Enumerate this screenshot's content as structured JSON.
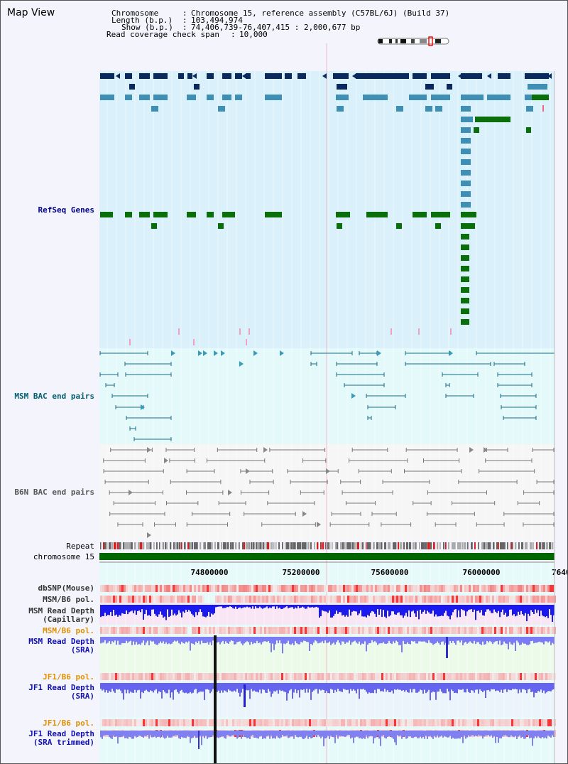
{
  "page": {
    "title": "Map View"
  },
  "info": {
    "chromosome_key": "Chromosome",
    "chromosome_value": "Chromosome 15, reference assembly (C57BL/6J) (Build 37)",
    "length_key": "Length (b.p.)",
    "length_value": "103,494,974",
    "show_key": "Show (b.p.)",
    "show_value": "74,406,739-76,407,415 : 2,000,677 bp",
    "span_key": "Read coverage check span",
    "span_value": "10,000"
  },
  "tracks": {
    "refseq": "RefSeq Genes",
    "msm_bac": "MSM BAC end pairs",
    "b6n_bac": "B6N BAC end pairs",
    "repeat": "Repeat",
    "chromosome": "chromosome 15",
    "dbsnp": "dbSNP(Mouse)",
    "msm_b6_pol_1": "MSM/B6 pol.",
    "msm_depth_cap_1": "MSM Read Depth",
    "msm_depth_cap_2": "(Capillary)",
    "msm_b6_pol_2": "MSM/B6 pol.",
    "msm_depth_sra_1": "MSM Read Depth",
    "msm_depth_sra_2": "(SRA)",
    "jf1_b6_pol_1": "JF1/B6 pol.",
    "jf1_depth_1": "JF1 Read Depth",
    "jf1_depth_2": "(SRA)",
    "jf1_b6_pol_2": "JF1/B6 pol.",
    "jf1_trim_1": "JF1 Read Depth",
    "jf1_trim_2": "(SRA trimmed)"
  },
  "axis": {
    "ticks": [
      "74800000",
      "75200000",
      "75600000",
      "76000000",
      "7640"
    ]
  },
  "colors": {
    "refseq_bg": "#daf0fa",
    "gene_navy": "#0a2a5e",
    "gene_blue": "#3f8fb5",
    "gene_green": "#0a6e0a",
    "bac_bg": "#e4fafa",
    "b6n_bg": "#f6f6f6",
    "chromosome_bar": "#006600",
    "depth_blue": "#1a1aee",
    "depth_light": "#7b7bf5"
  }
}
